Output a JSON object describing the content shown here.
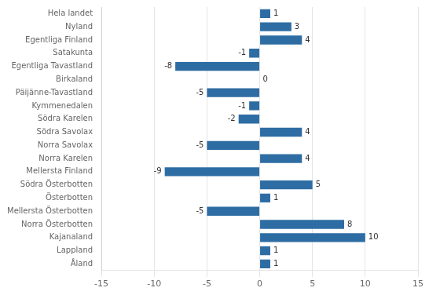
{
  "chart_data": {
    "type": "bar",
    "orientation": "horizontal",
    "categories": [
      "Hela landet",
      "Nyland",
      "Egentliga Finland",
      "Satakunta",
      "Egentliga Tavastland",
      "Birkaland",
      "Päijänne-Tavastland",
      "Kymmenedalen",
      "Södra Karelen",
      "Södra Savolax",
      "Norra Savolax",
      "Norra Karelen",
      "Mellersta Finland",
      "Södra Österbotten",
      "Österbotten",
      "Mellersta Österbotten",
      "Norra Österbotten",
      "Kajanaland",
      "Lappland",
      "Åland"
    ],
    "values": [
      1,
      3,
      4,
      -1,
      -8,
      0,
      -5,
      -1,
      -2,
      4,
      -5,
      4,
      -9,
      5,
      1,
      -5,
      8,
      10,
      1,
      1
    ],
    "color": "#2E6DA4",
    "xlim": [
      -15,
      15
    ],
    "xticks": [
      -15,
      -10,
      -5,
      0,
      5,
      10,
      15
    ],
    "grid": true,
    "data_labels": true
  }
}
